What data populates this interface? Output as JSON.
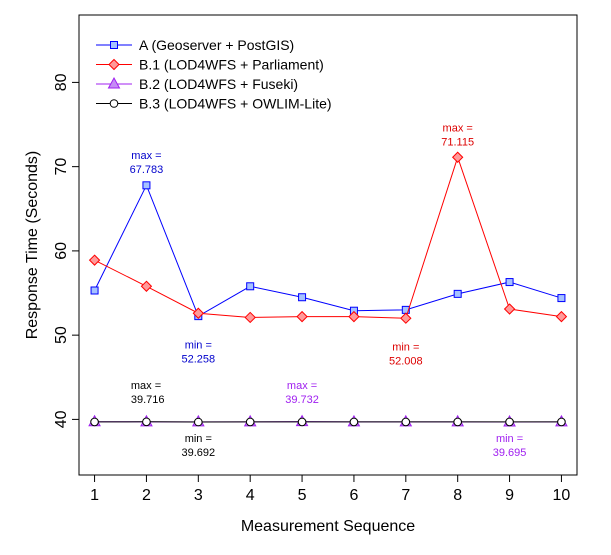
{
  "chart_data": {
    "type": "line",
    "title": "",
    "xlabel": "Measurement Sequence",
    "ylabel": "Response Time (Seconds)",
    "x": [
      1,
      2,
      3,
      4,
      5,
      6,
      7,
      8,
      9,
      10
    ],
    "x_ticks": [
      "1",
      "2",
      "3",
      "4",
      "5",
      "6",
      "7",
      "8",
      "9",
      "10"
    ],
    "y_ticks": [
      "40",
      "50",
      "60",
      "70",
      "80"
    ],
    "xlim": [
      0.7,
      10.3
    ],
    "ylim": [
      33.4,
      88.0
    ],
    "grid": false,
    "legend_position": "top-left",
    "series": [
      {
        "name": "A (Geoserver + PostGIS)",
        "color": "#0000ff",
        "fill": "#a6c2ff",
        "marker": "square",
        "values": [
          55.3,
          67.783,
          52.258,
          55.8,
          54.5,
          52.9,
          53.0,
          54.9,
          56.3,
          54.4
        ]
      },
      {
        "name": "B.1 (LOD4WFS + Parliament)",
        "color": "#ff0000",
        "fill": "#ff9a9a",
        "marker": "diamond",
        "values": [
          58.9,
          55.8,
          52.6,
          52.1,
          52.2,
          52.2,
          52.008,
          71.115,
          53.1,
          52.2
        ]
      },
      {
        "name": "B.2 (LOD4WFS + Fuseki)",
        "color": "#a020f0",
        "fill": "#c58cf5",
        "marker": "triangle",
        "values": [
          39.72,
          39.71,
          39.7,
          39.71,
          39.732,
          39.7,
          39.71,
          39.71,
          39.695,
          39.7
        ]
      },
      {
        "name": "B.3 (LOD4WFS + OWLIM-Lite)",
        "color": "#000000",
        "fill": "#ffffff",
        "marker": "circle",
        "values": [
          39.7,
          39.716,
          39.692,
          39.7,
          39.7,
          39.7,
          39.7,
          39.7,
          39.7,
          39.7
        ]
      }
    ],
    "annotations": [
      {
        "lines": [
          "max =",
          "67.783"
        ],
        "color": "#0000cc",
        "x": 2,
        "y": 70.9,
        "anchor": "middle"
      },
      {
        "lines": [
          "max =",
          "71.115"
        ],
        "color": "#dd0000",
        "x": 8,
        "y": 74.2,
        "anchor": "middle"
      },
      {
        "lines": [
          "min =",
          "52.258"
        ],
        "color": "#0000cc",
        "x": 3,
        "y": 48.4,
        "anchor": "middle"
      },
      {
        "lines": [
          "min =",
          "52.008"
        ],
        "color": "#dd0000",
        "x": 7,
        "y": 48.2,
        "anchor": "middle"
      },
      {
        "lines": [
          "max =",
          "39.716"
        ],
        "color": "#000000",
        "x": 1.7,
        "y": 43.6,
        "anchor": "start"
      },
      {
        "lines": [
          "max =",
          "39.732"
        ],
        "color": "#a020f0",
        "x": 5,
        "y": 43.6,
        "anchor": "middle"
      },
      {
        "lines": [
          "min =",
          "39.692"
        ],
        "color": "#000000",
        "x": 3,
        "y": 37.3,
        "anchor": "middle"
      },
      {
        "lines": [
          "min =",
          "39.695"
        ],
        "color": "#a020f0",
        "x": 9,
        "y": 37.3,
        "anchor": "middle"
      }
    ]
  }
}
